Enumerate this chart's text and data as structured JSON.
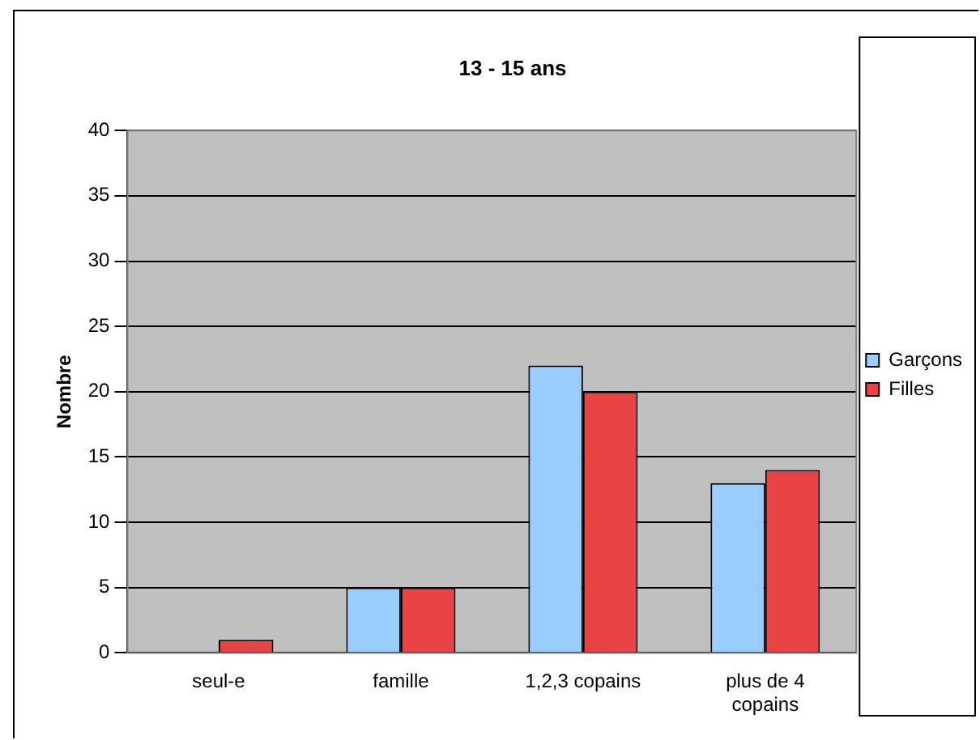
{
  "chart_data": {
    "type": "bar",
    "title": "13 - 15 ans",
    "ylabel": "Nombre",
    "categories": [
      "seul-e",
      "famille",
      "1,2,3 copains",
      "plus de 4 copains"
    ],
    "series": [
      {
        "name": "Garçons",
        "color": "#99ccff",
        "values": [
          0,
          5,
          22,
          13
        ]
      },
      {
        "name": "Filles",
        "color": "#e84444",
        "values": [
          1,
          5,
          20,
          14
        ]
      }
    ],
    "ylim": [
      0,
      40
    ],
    "yticks": [
      0,
      5,
      10,
      15,
      20,
      25,
      30,
      35,
      40
    ],
    "grid": "y",
    "legend": "right"
  }
}
